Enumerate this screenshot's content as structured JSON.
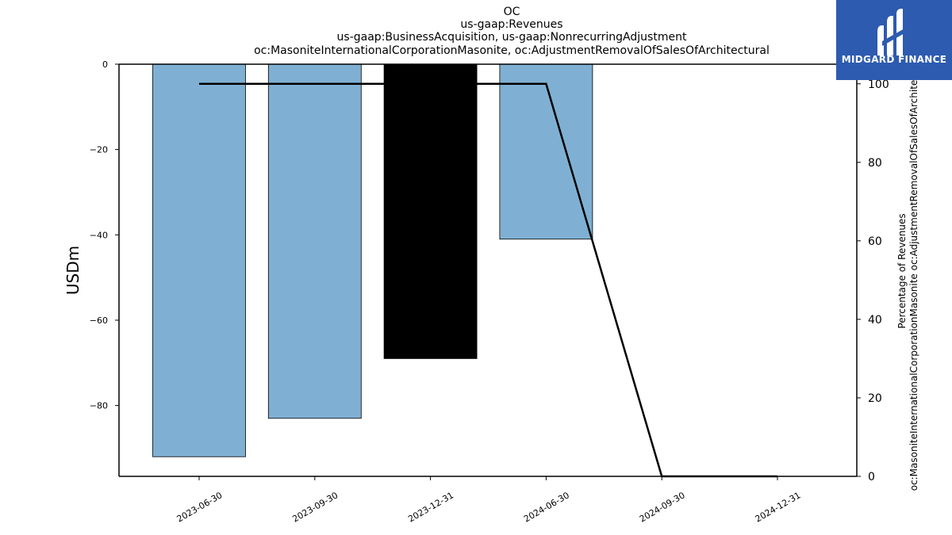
{
  "title_lines": [
    "OC",
    "us-gaap:Revenues",
    "us-gaap:BusinessAcquisition, us-gaap:NonrecurringAdjustment",
    "oc:MasoniteInternationalCorporationMasonite, oc:AdjustmentRemovalOfSalesOfArchitectural"
  ],
  "logo": {
    "text": "MIDGARD FINANCE",
    "color": "#2d5bb0"
  },
  "chart_data": {
    "type": "bar+line",
    "categories": [
      "2023-06-30",
      "2023-09-30",
      "2023-12-31",
      "2024-06-30",
      "2024-09-30",
      "2024-12-31"
    ],
    "bars": {
      "axis": "left",
      "values": [
        -92,
        -83,
        -69,
        -41,
        null,
        null
      ],
      "colors": [
        "#7fb0d3",
        "#7fb0d3",
        "#000000",
        "#7fb0d3",
        "#7fb0d3",
        "#7fb0d3"
      ]
    },
    "line": {
      "axis": "right",
      "values": [
        100,
        100,
        100,
        100,
        0,
        0
      ],
      "color": "#000000"
    },
    "y_left": {
      "label": "USDm",
      "ticks": [
        0,
        -20,
        -40,
        -60,
        -80
      ],
      "range": [
        -96.6,
        0
      ]
    },
    "y_right": {
      "label_lines": [
        "Percentage of Revenues",
        "oc:MasoniteInternationalCorporationMasonite oc:AdjustmentRemovalOfSalesOfArchite"
      ],
      "ticks": [
        0,
        20,
        40,
        60,
        80,
        100
      ],
      "range": [
        0,
        105
      ]
    },
    "grid": false
  }
}
